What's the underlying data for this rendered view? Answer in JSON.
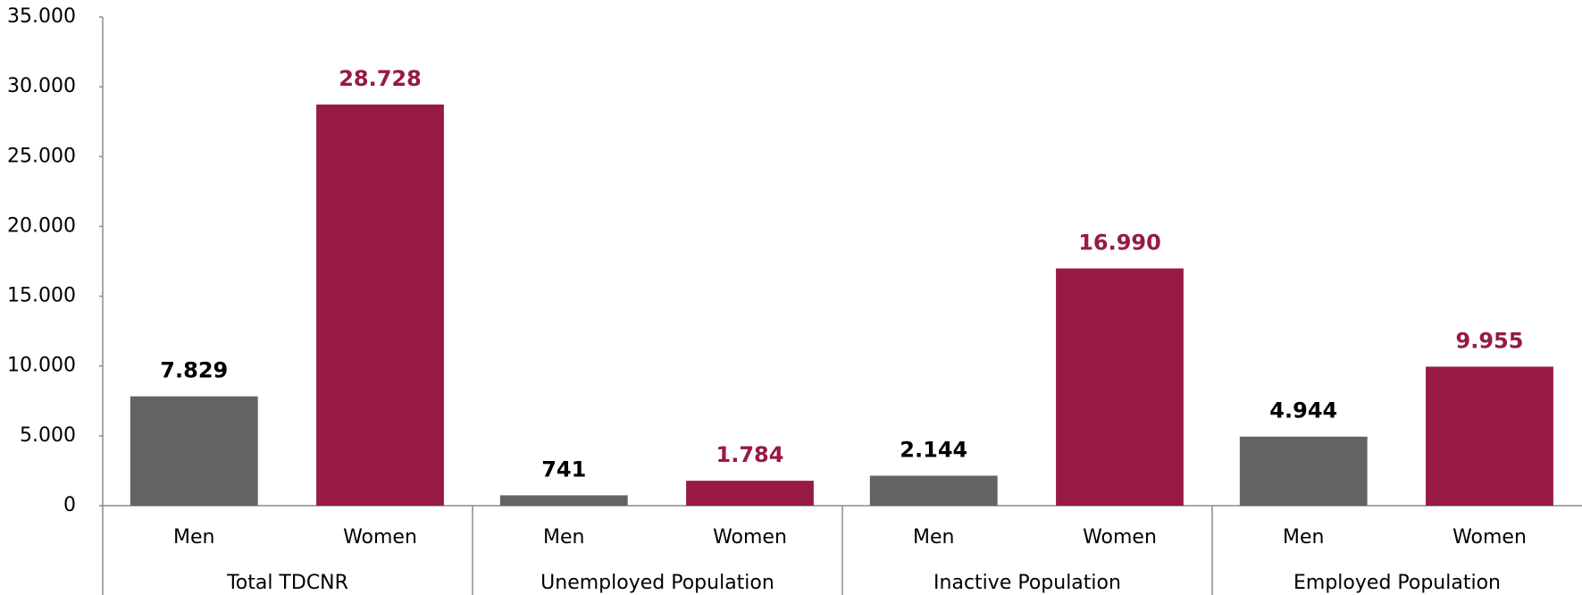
{
  "chart_data": {
    "type": "bar",
    "categories": [
      "Total TDCNR",
      "Unemployed Population",
      "Inactive Population",
      "Employed Population"
    ],
    "series": [
      {
        "name": "Men",
        "color": "#636363",
        "label_color": "#000000",
        "values": [
          7829,
          741,
          2144,
          4944
        ],
        "value_labels": [
          "7.829",
          "741",
          "2.144",
          "4.944"
        ]
      },
      {
        "name": "Women",
        "color": "#971a45",
        "label_color": "#971a45",
        "values": [
          28728,
          1784,
          16990,
          9955
        ],
        "value_labels": [
          "28.728",
          "1.784",
          "16.990",
          "9.955"
        ]
      }
    ],
    "ylim": [
      0,
      35000
    ],
    "yticks": [
      0,
      {
        "value": 5000,
        "label": "5.000"
      },
      {
        "value": 10000,
        "label": "10.000"
      },
      {
        "value": 15000,
        "label": "15.000"
      },
      {
        "value": 20000,
        "label": "20.000"
      },
      {
        "value": 25000,
        "label": "25.000"
      },
      {
        "value": 30000,
        "label": "30.000"
      },
      {
        "value": 35000,
        "label": "35.000"
      }
    ],
    "grid": false
  }
}
